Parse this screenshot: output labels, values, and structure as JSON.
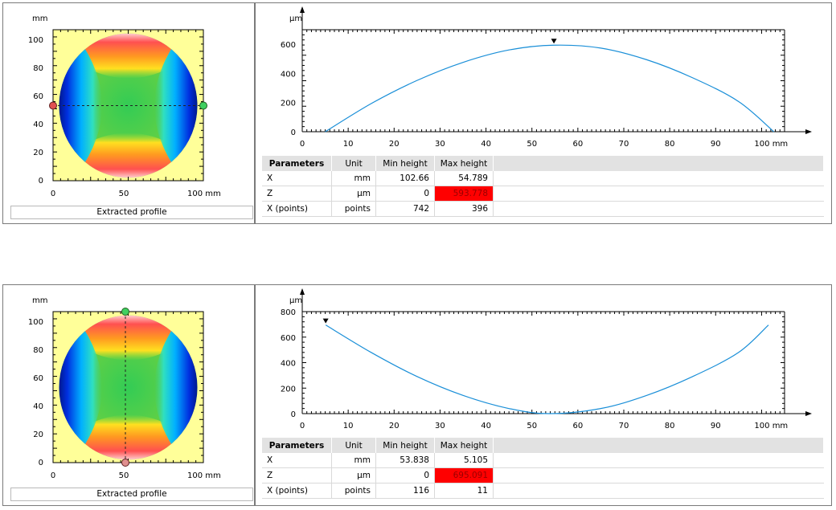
{
  "views": [
    {
      "map": {
        "y_unit": "mm",
        "x_unit": "mm",
        "y_ticks": [
          "0",
          "20",
          "40",
          "60",
          "80",
          "100"
        ],
        "x_ticks": [
          "0",
          "50",
          "100 mm"
        ],
        "cut": "horizontal",
        "caption": "Extracted profile"
      },
      "profile": {
        "y_unit": "µm",
        "y_ticks": [
          "0",
          "200",
          "400",
          "600"
        ],
        "x_ticks": [
          "0",
          "10",
          "20",
          "30",
          "40",
          "50",
          "60",
          "70",
          "80",
          "90",
          "100 mm"
        ],
        "marker": "max-marker-icon"
      },
      "table": {
        "headers": [
          "Parameters",
          "Unit",
          "Min height",
          "Max height"
        ],
        "rows": [
          {
            "name": "X",
            "unit": "mm",
            "min": "102.66",
            "max": "54.789"
          },
          {
            "name": "Z",
            "unit": "µm",
            "min": "0",
            "max": "593.778"
          },
          {
            "name": "X (points)",
            "unit": "points",
            "min": "742",
            "max": "396"
          }
        ]
      }
    },
    {
      "map": {
        "y_unit": "mm",
        "x_unit": "mm",
        "y_ticks": [
          "0",
          "20",
          "40",
          "60",
          "80",
          "100"
        ],
        "x_ticks": [
          "0",
          "50",
          "100 mm"
        ],
        "cut": "vertical",
        "caption": "Extracted profile"
      },
      "profile": {
        "y_unit": "µm",
        "y_ticks": [
          "0",
          "200",
          "400",
          "600",
          "800"
        ],
        "x_ticks": [
          "0",
          "10",
          "20",
          "30",
          "40",
          "50",
          "60",
          "70",
          "80",
          "90",
          "100 mm"
        ],
        "marker": "max-marker-icon"
      },
      "table": {
        "headers": [
          "Parameters",
          "Unit",
          "Min height",
          "Max height"
        ],
        "rows": [
          {
            "name": "X",
            "unit": "mm",
            "min": "53.838",
            "max": "5.105"
          },
          {
            "name": "Z",
            "unit": "µm",
            "min": "0",
            "max": "695.091"
          },
          {
            "name": "X (points)",
            "unit": "points",
            "min": "116",
            "max": "11"
          }
        ]
      }
    }
  ],
  "chart_data": [
    {
      "type": "line",
      "xlabel": "mm",
      "ylabel": "µm",
      "xlim": [
        0,
        105
      ],
      "ylim": [
        0,
        700
      ],
      "x": [
        5,
        15,
        25,
        35,
        45,
        54.789,
        65,
        75,
        85,
        95,
        102.66
      ],
      "y": [
        0,
        193,
        352,
        476,
        561,
        593.778,
        574,
        494,
        370,
        207,
        0
      ]
    },
    {
      "type": "line",
      "xlabel": "mm",
      "ylabel": "µm",
      "xlim": [
        0,
        105
      ],
      "ylim": [
        0,
        800
      ],
      "x": [
        5.105,
        15,
        25,
        35,
        45,
        53.838,
        65,
        75,
        85,
        95,
        101.5
      ],
      "y": [
        695.091,
        480,
        291,
        143,
        40,
        0,
        40,
        143,
        291,
        480,
        695
      ]
    }
  ],
  "colors": {
    "profile_line": "#1a8fd8",
    "max_highlight": "#ff0000",
    "map_background": "#ffff99"
  }
}
